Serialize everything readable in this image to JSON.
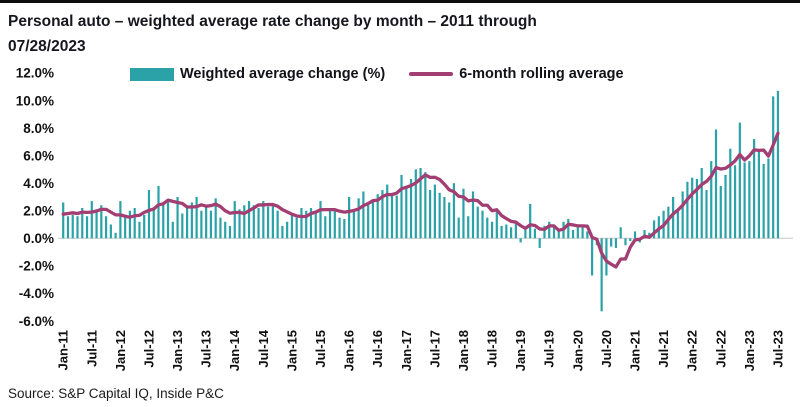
{
  "title": {
    "line1": "Personal auto – weighted average rate change by month – 2011 through",
    "line2": "07/28/2023"
  },
  "legend": {
    "items": [
      {
        "label": "Weighted average change (%)",
        "type": "bar",
        "color": "#2AA2A8"
      },
      {
        "label": "6-month rolling average",
        "type": "line",
        "color": "#A23E72"
      }
    ]
  },
  "source": "Source: S&P Capital IQ, Inside P&C",
  "colors": {
    "bar": "#2AA2A8",
    "line": "#A23E72",
    "axis_label": "#111111",
    "baseline": "#c8c8c8",
    "title": "#16161e"
  },
  "chart_data": {
    "type": "combo",
    "x_start": "Jan-11",
    "x_end": "Jul-23",
    "x_tick_labels": [
      "Jan-11",
      "Jul-11",
      "Jan-12",
      "Jul-12",
      "Jan-13",
      "Jul-13",
      "Jan-14",
      "Jul-14",
      "Jan-15",
      "Jul-15",
      "Jan-16",
      "Jul-16",
      "Jan-17",
      "Jul-17",
      "Jan-18",
      "Jul-18",
      "Jan-19",
      "Jul-19",
      "Jan-20",
      "Jul-20",
      "Jan-21",
      "Jul-21",
      "Jan-22",
      "Jul-22",
      "Jan-23",
      "Jul-23"
    ],
    "y_ticks": [
      12,
      10,
      8,
      6,
      4,
      2,
      0,
      -2,
      -4,
      -6
    ],
    "ylim": [
      -6,
      12
    ],
    "y_unit": "%",
    "grid": false,
    "legend_position": "top",
    "series": [
      {
        "name": "Weighted average change (%)",
        "type": "bar",
        "color": "#2AA2A8",
        "values": [
          2.6,
          1.6,
          1.7,
          1.6,
          2.2,
          1.6,
          2.7,
          2.1,
          2.4,
          1.6,
          1.0,
          0.4,
          2.7,
          1.5,
          2.0,
          2.2,
          1.2,
          1.7,
          3.5,
          2.2,
          3.8,
          2.6,
          2.8,
          1.2,
          3.0,
          1.8,
          2.2,
          2.6,
          3.0,
          2.0,
          2.4,
          2.0,
          2.9,
          1.5,
          1.2,
          0.9,
          2.7,
          2.1,
          2.4,
          2.7,
          2.4,
          2.2,
          2.7,
          2.3,
          2.4,
          2.0,
          0.9,
          1.2,
          1.7,
          1.5,
          2.2,
          2.0,
          2.2,
          1.8,
          2.7,
          1.6,
          2.2,
          2.0,
          1.5,
          1.4,
          3.0,
          2.0,
          2.9,
          3.4,
          2.4,
          2.7,
          3.2,
          3.5,
          3.9,
          3.3,
          3.1,
          4.6,
          3.8,
          4.3,
          5.0,
          5.1,
          4.8,
          3.5,
          3.9,
          3.3,
          3.0,
          2.6,
          4.0,
          1.5,
          3.6,
          1.6,
          3.4,
          2.3,
          2.0,
          1.5,
          1.2,
          2.0,
          0.9,
          1.0,
          0.8,
          1.1,
          -0.3,
          0.8,
          2.5,
          0.7,
          -0.7,
          0.9,
          1.2,
          0.8,
          0.6,
          1.2,
          1.4,
          0.6,
          0.8,
          0.8,
          0.5,
          -2.7,
          -0.5,
          -5.3,
          -2.7,
          -0.6,
          -0.7,
          0.8,
          -0.5,
          -0.2,
          0.5,
          -0.3,
          0.6,
          0.4,
          1.3,
          1.6,
          2.0,
          2.3,
          3.0,
          2.1,
          3.4,
          4.1,
          4.4,
          4.3,
          5.1,
          3.5,
          5.6,
          7.9,
          3.8,
          4.6,
          6.5,
          5.3,
          8.4,
          5.5,
          5.6,
          7.2,
          6.3,
          5.4,
          5.8,
          10.3,
          10.7
        ]
      },
      {
        "name": "6-month rolling average",
        "type": "line",
        "color": "#A23E72",
        "values": [
          1.75,
          1.8,
          1.85,
          1.8,
          1.9,
          1.88,
          1.9,
          1.98,
          2.1,
          2.1,
          1.9,
          1.7,
          1.7,
          1.6,
          1.53,
          1.63,
          1.67,
          1.88,
          2.02,
          2.13,
          2.43,
          2.5,
          2.77,
          2.68,
          2.6,
          2.53,
          2.27,
          2.27,
          2.3,
          2.43,
          2.33,
          2.37,
          2.48,
          2.3,
          2.0,
          1.82,
          1.87,
          1.88,
          1.8,
          2.0,
          2.2,
          2.42,
          2.42,
          2.45,
          2.45,
          2.33,
          2.08,
          1.92,
          1.75,
          1.62,
          1.58,
          1.58,
          1.8,
          1.9,
          2.07,
          2.08,
          2.08,
          2.08,
          1.97,
          1.9,
          1.95,
          2.02,
          2.13,
          2.37,
          2.52,
          2.73,
          2.77,
          3.02,
          3.18,
          3.17,
          3.28,
          3.6,
          3.7,
          3.83,
          4.02,
          4.32,
          4.6,
          4.42,
          4.43,
          4.27,
          3.93,
          3.52,
          3.38,
          3.05,
          3.0,
          2.72,
          2.78,
          2.73,
          2.4,
          2.4,
          2.0,
          2.07,
          1.65,
          1.43,
          1.23,
          1.17,
          0.92,
          0.72,
          0.98,
          0.93,
          0.68,
          0.65,
          0.9,
          0.9,
          0.58,
          0.67,
          1.02,
          0.97,
          0.9,
          0.9,
          0.88,
          0.07,
          -0.08,
          -1.07,
          -1.65,
          -1.88,
          -2.08,
          -1.5,
          -1.5,
          -0.65,
          -0.12,
          -0.07,
          0.15,
          0.08,
          0.38,
          0.68,
          0.93,
          1.37,
          1.77,
          2.05,
          2.4,
          2.82,
          3.22,
          3.55,
          3.9,
          4.13,
          4.5,
          5.13,
          5.03,
          5.08,
          5.32,
          5.62,
          6.08,
          5.68,
          5.98,
          6.42,
          6.38,
          6.4,
          5.97,
          6.77,
          7.62
        ]
      }
    ]
  }
}
